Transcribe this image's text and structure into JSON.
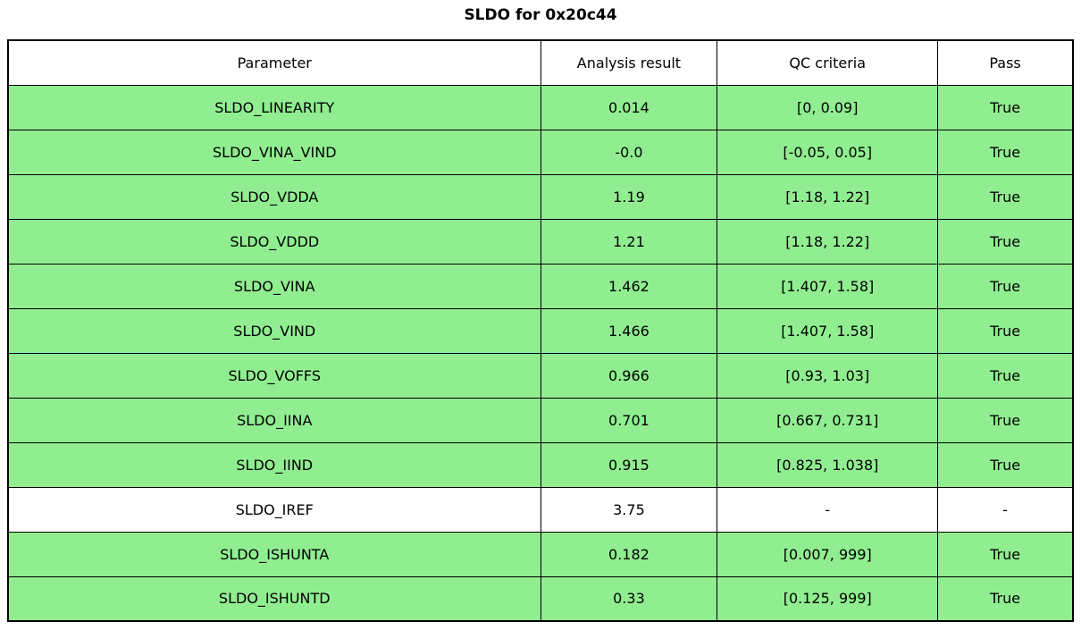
{
  "title": "SLDO for 0x20c44",
  "table": {
    "headers": [
      "Parameter",
      "Analysis result",
      "QC criteria",
      "Pass"
    ],
    "rows": [
      {
        "parameter": "SLDO_LINEARITY",
        "result": "0.014",
        "criteria": "[0, 0.09]",
        "pass": "True",
        "highlight": true
      },
      {
        "parameter": "SLDO_VINA_VIND",
        "result": "-0.0",
        "criteria": "[-0.05, 0.05]",
        "pass": "True",
        "highlight": true
      },
      {
        "parameter": "SLDO_VDDA",
        "result": "1.19",
        "criteria": "[1.18, 1.22]",
        "pass": "True",
        "highlight": true
      },
      {
        "parameter": "SLDO_VDDD",
        "result": "1.21",
        "criteria": "[1.18, 1.22]",
        "pass": "True",
        "highlight": true
      },
      {
        "parameter": "SLDO_VINA",
        "result": "1.462",
        "criteria": "[1.407, 1.58]",
        "pass": "True",
        "highlight": true
      },
      {
        "parameter": "SLDO_VIND",
        "result": "1.466",
        "criteria": "[1.407, 1.58]",
        "pass": "True",
        "highlight": true
      },
      {
        "parameter": "SLDO_VOFFS",
        "result": "0.966",
        "criteria": "[0.93, 1.03]",
        "pass": "True",
        "highlight": true
      },
      {
        "parameter": "SLDO_IINA",
        "result": "0.701",
        "criteria": "[0.667, 0.731]",
        "pass": "True",
        "highlight": true
      },
      {
        "parameter": "SLDO_IIND",
        "result": "0.915",
        "criteria": "[0.825, 1.038]",
        "pass": "True",
        "highlight": true
      },
      {
        "parameter": "SLDO_IREF",
        "result": "3.75",
        "criteria": "-",
        "pass": "-",
        "highlight": false
      },
      {
        "parameter": "SLDO_ISHUNTA",
        "result": "0.182",
        "criteria": "[0.007, 999]",
        "pass": "True",
        "highlight": true
      },
      {
        "parameter": "SLDO_ISHUNTD",
        "result": "0.33",
        "criteria": "[0.125, 999]",
        "pass": "True",
        "highlight": true
      }
    ],
    "colors": {
      "pass_row_bg": "#90EE90",
      "neutral_row_bg": "#FFFFFF",
      "border": "#000000",
      "text": "#000000"
    }
  },
  "chart_data": {
    "type": "table",
    "title": "SLDO for 0x20c44",
    "columns": [
      "Parameter",
      "Analysis result",
      "QC criteria",
      "Pass"
    ],
    "rows": [
      [
        "SLDO_LINEARITY",
        "0.014",
        "[0, 0.09]",
        "True"
      ],
      [
        "SLDO_VINA_VIND",
        "-0.0",
        "[-0.05, 0.05]",
        "True"
      ],
      [
        "SLDO_VDDA",
        "1.19",
        "[1.18, 1.22]",
        "True"
      ],
      [
        "SLDO_VDDD",
        "1.21",
        "[1.18, 1.22]",
        "True"
      ],
      [
        "SLDO_VINA",
        "1.462",
        "[1.407, 1.58]",
        "True"
      ],
      [
        "SLDO_VIND",
        "1.466",
        "[1.407, 1.58]",
        "True"
      ],
      [
        "SLDO_VOFFS",
        "0.966",
        "[0.93, 1.03]",
        "True"
      ],
      [
        "SLDO_IINA",
        "0.701",
        "[0.667, 0.731]",
        "True"
      ],
      [
        "SLDO_IIND",
        "0.915",
        "[0.825, 1.038]",
        "True"
      ],
      [
        "SLDO_IREF",
        "3.75",
        "-",
        "-"
      ],
      [
        "SLDO_ISHUNTA",
        "0.182",
        "[0.007, 999]",
        "True"
      ],
      [
        "SLDO_ISHUNTD",
        "0.33",
        "[0.125, 999]",
        "True"
      ]
    ]
  }
}
